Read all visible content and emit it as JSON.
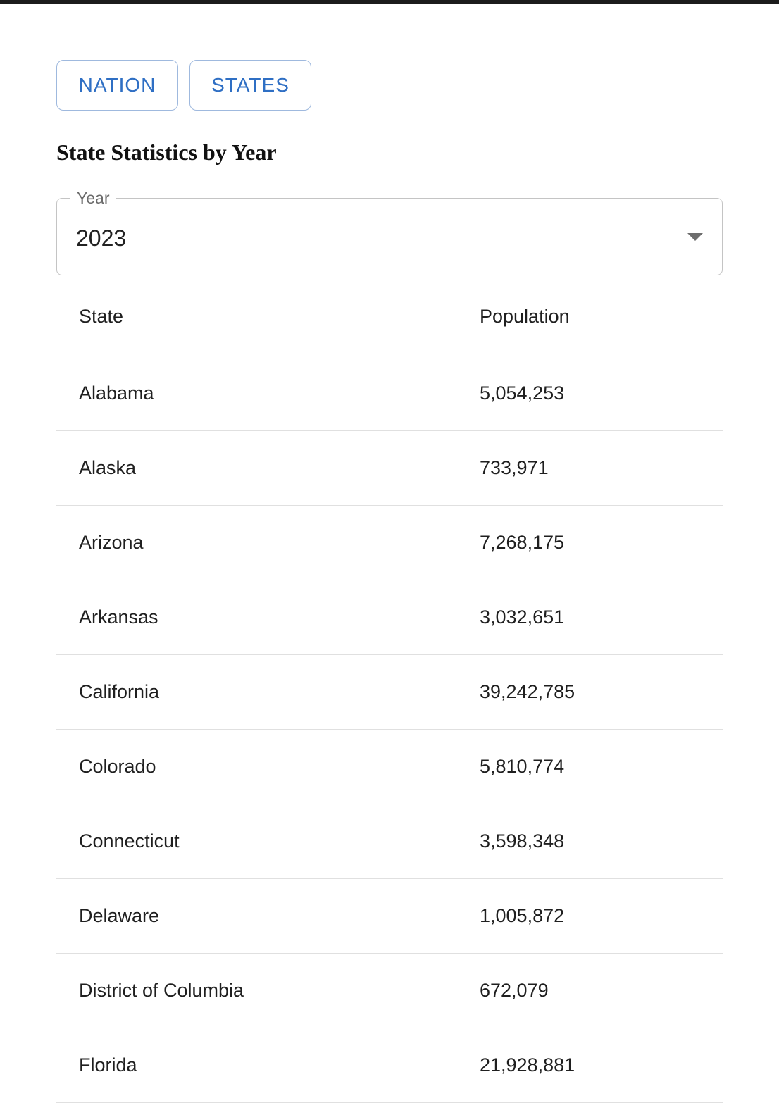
{
  "tabs": {
    "nation_label": "NATION",
    "states_label": "STATES"
  },
  "page": {
    "title": "State Statistics by Year"
  },
  "year_select": {
    "label": "Year",
    "value": "2023",
    "icon": "chevron-down-icon"
  },
  "table": {
    "columns": [
      "State",
      "Population"
    ],
    "rows": [
      {
        "state": "Alabama",
        "population": "5,054,253"
      },
      {
        "state": "Alaska",
        "population": "733,971"
      },
      {
        "state": "Arizona",
        "population": "7,268,175"
      },
      {
        "state": "Arkansas",
        "population": "3,032,651"
      },
      {
        "state": "California",
        "population": "39,242,785"
      },
      {
        "state": "Colorado",
        "population": "5,810,774"
      },
      {
        "state": "Connecticut",
        "population": "3,598,348"
      },
      {
        "state": "Delaware",
        "population": "1,005,872"
      },
      {
        "state": "District of Columbia",
        "population": "672,079"
      },
      {
        "state": "Florida",
        "population": "21,928,881"
      }
    ]
  },
  "colors": {
    "accent": "#2f6fc4",
    "button_border": "#9fb9de",
    "divider": "#e0e0e0",
    "top_bar": "#1c1c1c"
  }
}
